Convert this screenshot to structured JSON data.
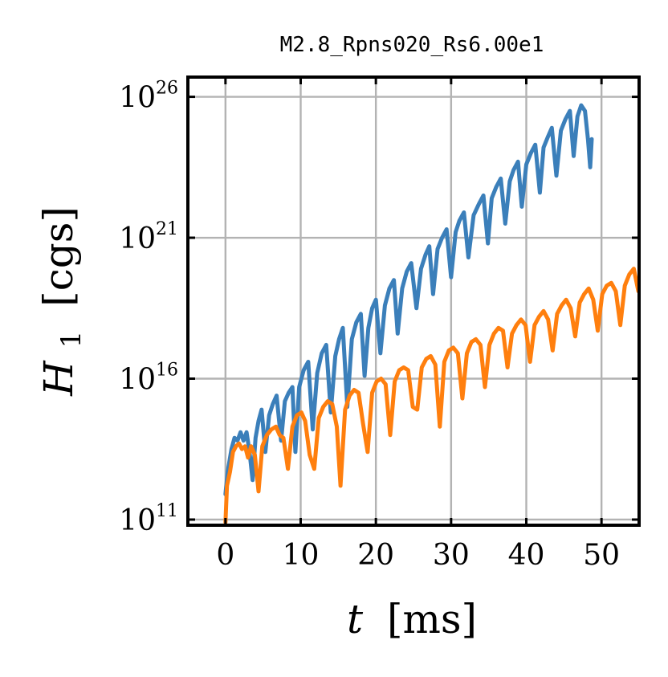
{
  "chart_data": {
    "type": "line",
    "title": "M2.8_Rpns020_Rs6.00e1",
    "xlabel_var": "t",
    "xlabel_unit": "[ms]",
    "ylabel_var": "H",
    "ylabel_sub": "1",
    "ylabel_unit": "[cgs]",
    "xlim": [
      -5,
      55
    ],
    "ylim_log10": [
      10.8,
      26.7
    ],
    "yscale": "log",
    "grid": true,
    "x_ticks": [
      "0",
      "10",
      "20",
      "30",
      "40",
      "50"
    ],
    "x_tick_values": [
      0,
      10,
      20,
      30,
      40,
      50
    ],
    "y_ticks": [
      {
        "base": "10",
        "exp": "26",
        "log10": 26
      },
      {
        "base": "10",
        "exp": "21",
        "log10": 21
      },
      {
        "base": "10",
        "exp": "16",
        "log10": 16
      },
      {
        "base": "10",
        "exp": "11",
        "log10": 11
      }
    ],
    "series": [
      {
        "color": "#3b7fba",
        "x": [
          0.0,
          0.3,
          0.8,
          1.2,
          1.6,
          2.0,
          2.4,
          2.8,
          3.2,
          3.6,
          4.0,
          4.4,
          4.8,
          5.3,
          5.8,
          6.3,
          6.8,
          7.4,
          7.9,
          8.4,
          8.9,
          9.3,
          9.8,
          10.4,
          11.0,
          11.6,
          12.2,
          12.8,
          13.4,
          14.0,
          14.6,
          15.1,
          15.6,
          16.2,
          16.8,
          17.4,
          18.0,
          18.5,
          19.0,
          19.5,
          20.0,
          20.6,
          21.2,
          21.8,
          22.4,
          22.9,
          23.5,
          24.1,
          24.7,
          25.4,
          26.0,
          26.6,
          27.1,
          27.6,
          28.2,
          28.8,
          29.4,
          30.0,
          30.6,
          31.1,
          31.7,
          32.3,
          33.0,
          33.7,
          34.3,
          34.9,
          35.4,
          36.0,
          36.6,
          37.2,
          37.8,
          38.3,
          38.9,
          39.4,
          40.0,
          40.6,
          41.2,
          41.8,
          42.3,
          42.9,
          43.4,
          44.0,
          44.6,
          45.2,
          45.8,
          46.3,
          46.8,
          47.3,
          47.8,
          48.2,
          48.5,
          48.7
        ],
        "log10": [
          11.9,
          12.7,
          13.5,
          13.9,
          13.8,
          14.1,
          13.8,
          14.1,
          13.4,
          12.4,
          13.9,
          14.5,
          14.9,
          13.4,
          14.7,
          15.1,
          15.4,
          13.8,
          15.2,
          15.5,
          15.7,
          13.4,
          15.7,
          16.3,
          16.6,
          14.2,
          16.2,
          16.9,
          17.2,
          14.8,
          16.8,
          17.4,
          17.8,
          15.0,
          17.4,
          18.0,
          18.3,
          16.1,
          17.8,
          18.5,
          18.8,
          16.9,
          18.6,
          19.2,
          19.5,
          17.6,
          19.2,
          19.8,
          20.1,
          18.5,
          19.9,
          20.4,
          20.7,
          19.0,
          20.6,
          21.0,
          21.3,
          19.6,
          21.2,
          21.6,
          21.9,
          20.3,
          21.8,
          22.2,
          22.5,
          20.8,
          22.4,
          22.8,
          23.1,
          21.5,
          23.0,
          23.4,
          23.7,
          22.1,
          23.6,
          24.0,
          24.3,
          22.6,
          24.2,
          24.6,
          24.9,
          23.2,
          24.8,
          25.2,
          25.5,
          23.9,
          25.3,
          25.7,
          25.5,
          24.5,
          23.5,
          24.5
        ]
      },
      {
        "color": "#ff7f0e",
        "x": [
          0.0,
          0.2,
          0.6,
          1.0,
          1.4,
          1.8,
          2.2,
          2.6,
          3.0,
          3.4,
          3.9,
          4.4,
          4.9,
          5.5,
          6.1,
          6.7,
          7.2,
          7.7,
          8.3,
          8.9,
          9.5,
          10.1,
          10.6,
          11.2,
          11.8,
          12.4,
          13.0,
          13.6,
          14.2,
          14.8,
          15.3,
          15.9,
          16.5,
          17.1,
          17.7,
          18.3,
          18.9,
          19.5,
          20.1,
          20.7,
          21.3,
          21.9,
          22.5,
          23.1,
          23.7,
          24.3,
          24.9,
          25.5,
          26.1,
          26.7,
          27.3,
          27.9,
          28.5,
          29.1,
          29.7,
          30.3,
          30.9,
          31.5,
          32.1,
          32.7,
          33.3,
          33.9,
          34.5,
          35.1,
          35.7,
          36.3,
          36.9,
          37.5,
          38.1,
          38.7,
          39.3,
          39.9,
          40.5,
          41.1,
          41.7,
          42.3,
          42.9,
          43.5,
          44.1,
          44.7,
          45.3,
          45.9,
          46.5,
          47.1,
          47.7,
          48.3,
          48.9,
          49.5,
          50.1,
          50.7,
          51.3,
          51.9,
          52.5,
          53.1,
          53.7,
          54.3,
          54.9
        ],
        "log10": [
          10.9,
          12.2,
          12.7,
          13.4,
          13.6,
          13.7,
          13.5,
          13.6,
          13.2,
          13.6,
          13.3,
          12.0,
          13.6,
          14.0,
          14.2,
          14.3,
          14.0,
          13.9,
          12.8,
          14.3,
          14.7,
          14.8,
          14.5,
          13.3,
          12.8,
          14.6,
          15.0,
          15.2,
          15.1,
          14.3,
          12.2,
          14.9,
          15.4,
          15.6,
          15.5,
          14.4,
          13.4,
          15.5,
          15.9,
          16.0,
          15.8,
          14.0,
          15.9,
          16.3,
          16.4,
          16.3,
          15.0,
          14.9,
          16.4,
          16.7,
          16.8,
          16.5,
          14.3,
          16.6,
          17.0,
          17.1,
          16.9,
          15.3,
          16.9,
          17.3,
          17.4,
          17.2,
          15.7,
          17.2,
          17.6,
          17.8,
          17.7,
          16.4,
          17.6,
          17.9,
          18.1,
          17.9,
          16.6,
          17.9,
          18.2,
          18.4,
          18.1,
          17.0,
          18.3,
          18.6,
          18.8,
          18.5,
          17.5,
          18.7,
          19.0,
          19.2,
          18.8,
          17.7,
          19.0,
          19.3,
          19.4,
          19.1,
          17.9,
          19.3,
          19.7,
          19.9,
          19.1
        ]
      }
    ]
  }
}
